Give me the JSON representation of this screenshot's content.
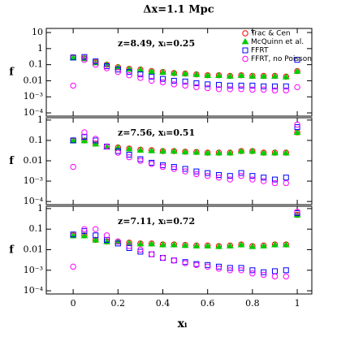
{
  "chart_data": [
    {
      "type": "scatter",
      "title": "Δx=1.1 Mpc",
      "annotation": "z=8.49, xᵢ=0.25",
      "ylabel": "f",
      "log_y": true,
      "xlim": [
        -0.12,
        1.065
      ],
      "ylim": [
        6.3e-05,
        18
      ],
      "yticks": [
        {
          "value": 0.0001,
          "label": "10⁻⁴"
        },
        {
          "value": 0.001,
          "label": "10⁻³"
        },
        0.01,
        0.1,
        1,
        10
      ],
      "x": [
        0,
        0.05,
        0.1,
        0.15,
        0.2,
        0.25,
        0.3,
        0.35,
        0.4,
        0.45,
        0.5,
        0.55,
        0.6,
        0.65,
        0.7,
        0.75,
        0.8,
        0.85,
        0.9,
        0.95,
        1
      ],
      "legend": "upper right",
      "series": [
        {
          "name": "Trac & Cen",
          "color": "#ff0000",
          "marker": "circle",
          "filled": false,
          "values": [
            0.28,
            0.25,
            0.14,
            0.1,
            0.07,
            0.055,
            0.05,
            0.04,
            0.035,
            0.03,
            0.028,
            0.025,
            0.022,
            0.022,
            0.02,
            0.022,
            0.02,
            0.02,
            0.02,
            0.018,
            0.04
          ]
        },
        {
          "name": "McQuinn et al.",
          "color": "#00cc00",
          "marker": "triangle",
          "filled": true,
          "values": [
            0.26,
            0.23,
            0.13,
            0.095,
            0.066,
            0.052,
            0.047,
            0.038,
            0.033,
            0.029,
            0.027,
            0.024,
            0.021,
            0.021,
            0.019,
            0.021,
            0.019,
            0.019,
            0.019,
            0.017,
            0.038
          ]
        },
        {
          "name": "FFRT",
          "color": "#0000ff",
          "marker": "square",
          "filled": false,
          "values": [
            0.28,
            0.3,
            0.16,
            0.08,
            0.05,
            0.035,
            0.025,
            0.018,
            0.013,
            0.01,
            0.009,
            0.007,
            0.006,
            0.0056,
            0.005,
            0.005,
            0.005,
            0.0045,
            0.0045,
            0.0045,
            0.2
          ]
        },
        {
          "name": "FFRT, no Poisson",
          "color": "#ff00ff",
          "marker": "circle",
          "filled": false,
          "values": [
            0.005,
            0.2,
            0.1,
            0.06,
            0.035,
            0.022,
            0.015,
            0.01,
            0.008,
            0.006,
            0.005,
            0.004,
            0.0035,
            0.003,
            0.003,
            0.003,
            0.0028,
            0.0028,
            0.0025,
            0.0025,
            0.004
          ]
        }
      ]
    },
    {
      "type": "scatter",
      "annotation": "z=7.56, xᵢ=0.51",
      "ylabel": "f",
      "log_y": true,
      "xlim": [
        -0.12,
        1.065
      ],
      "ylim": [
        7e-05,
        1.3
      ],
      "yticks": [
        {
          "value": 0.0001,
          "label": "10⁻⁴"
        },
        {
          "value": 0.001,
          "label": "10⁻³"
        },
        0.01,
        0.1,
        1
      ],
      "x": [
        0,
        0.05,
        0.1,
        0.15,
        0.2,
        0.25,
        0.3,
        0.35,
        0.4,
        0.45,
        0.5,
        0.55,
        0.6,
        0.65,
        0.7,
        0.75,
        0.8,
        0.85,
        0.9,
        0.95,
        1
      ],
      "series": [
        {
          "color": "#ff0000",
          "marker": "circle",
          "filled": false,
          "values": [
            0.1,
            0.1,
            0.07,
            0.05,
            0.045,
            0.04,
            0.035,
            0.033,
            0.03,
            0.03,
            0.028,
            0.027,
            0.025,
            0.025,
            0.025,
            0.03,
            0.03,
            0.025,
            0.025,
            0.025,
            0.25
          ]
        },
        {
          "color": "#00cc00",
          "marker": "triangle",
          "filled": true,
          "values": [
            0.095,
            0.095,
            0.066,
            0.047,
            0.043,
            0.038,
            0.033,
            0.031,
            0.029,
            0.029,
            0.027,
            0.026,
            0.024,
            0.024,
            0.024,
            0.029,
            0.029,
            0.024,
            0.024,
            0.024,
            0.24
          ]
        },
        {
          "color": "#0000ff",
          "marker": "square",
          "filled": false,
          "values": [
            0.1,
            0.15,
            0.1,
            0.05,
            0.03,
            0.02,
            0.012,
            0.008,
            0.006,
            0.005,
            0.004,
            0.003,
            0.0025,
            0.002,
            0.0018,
            0.0025,
            0.0018,
            0.0015,
            0.0012,
            0.0015,
            0.45
          ]
        },
        {
          "color": "#ff00ff",
          "marker": "circle",
          "filled": false,
          "values": [
            0.005,
            0.25,
            0.12,
            0.05,
            0.025,
            0.015,
            0.01,
            0.007,
            0.005,
            0.004,
            0.003,
            0.0022,
            0.0018,
            0.0015,
            0.0012,
            0.0018,
            0.0012,
            0.001,
            0.0008,
            0.0008,
            0.6
          ]
        }
      ]
    },
    {
      "type": "scatter",
      "annotation": "z=7.11, xᵢ=0.72",
      "ylabel": "f",
      "xlabel": "xᵢ",
      "log_y": true,
      "xlim": [
        -0.12,
        1.065
      ],
      "ylim": [
        7e-05,
        1.3
      ],
      "xticks": [
        0,
        0.2,
        0.4,
        0.6,
        0.8,
        1
      ],
      "yticks": [
        {
          "value": 0.0001,
          "label": "10⁻⁴"
        },
        {
          "value": 0.001,
          "label": "10⁻³"
        },
        0.01,
        0.1,
        1
      ],
      "x": [
        0,
        0.05,
        0.1,
        0.15,
        0.2,
        0.25,
        0.3,
        0.35,
        0.4,
        0.45,
        0.5,
        0.55,
        0.6,
        0.65,
        0.7,
        0.75,
        0.8,
        0.85,
        0.9,
        0.95,
        1
      ],
      "series": [
        {
          "color": "#ff0000",
          "marker": "circle",
          "filled": false,
          "values": [
            0.05,
            0.05,
            0.03,
            0.025,
            0.025,
            0.022,
            0.02,
            0.02,
            0.018,
            0.018,
            0.017,
            0.016,
            0.016,
            0.015,
            0.016,
            0.018,
            0.015,
            0.016,
            0.018,
            0.018,
            0.5
          ]
        },
        {
          "color": "#00cc00",
          "marker": "triangle",
          "filled": true,
          "values": [
            0.047,
            0.047,
            0.029,
            0.024,
            0.024,
            0.021,
            0.019,
            0.019,
            0.017,
            0.017,
            0.016,
            0.015,
            0.015,
            0.014,
            0.015,
            0.017,
            0.014,
            0.015,
            0.017,
            0.017,
            0.48
          ]
        },
        {
          "color": "#0000ff",
          "marker": "square",
          "filled": false,
          "values": [
            0.055,
            0.08,
            0.05,
            0.03,
            0.02,
            0.012,
            0.008,
            0.006,
            0.004,
            0.003,
            0.0025,
            0.002,
            0.0018,
            0.0015,
            0.0013,
            0.0013,
            0.001,
            0.0008,
            0.0009,
            0.001,
            0.6
          ]
        },
        {
          "color": "#ff00ff",
          "marker": "circle",
          "filled": false,
          "values": [
            0.0015,
            0.1,
            0.1,
            0.05,
            0.025,
            0.015,
            0.01,
            0.006,
            0.004,
            0.003,
            0.0022,
            0.0018,
            0.0015,
            0.0012,
            0.001,
            0.001,
            0.0007,
            0.0006,
            0.0005,
            0.0005,
            0.7
          ]
        }
      ]
    }
  ]
}
